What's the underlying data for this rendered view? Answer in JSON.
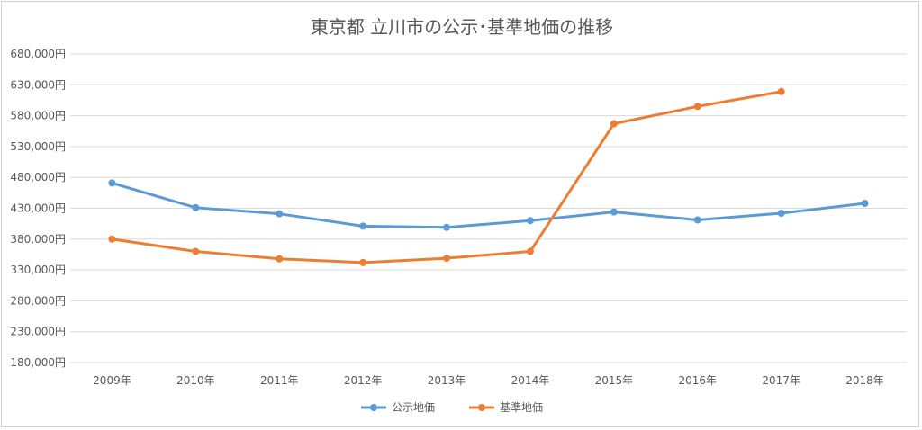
{
  "chart_data": {
    "type": "line",
    "title": "東京都 立川市の公示･基準地価の推移",
    "xlabel": "",
    "ylabel": "",
    "categories": [
      "2009年",
      "2010年",
      "2011年",
      "2012年",
      "2013年",
      "2014年",
      "2015年",
      "2016年",
      "2017年",
      "2018年"
    ],
    "ylim": [
      180000,
      680000
    ],
    "yticks": [
      180000,
      230000,
      280000,
      330000,
      380000,
      430000,
      480000,
      530000,
      580000,
      630000,
      680000
    ],
    "ytick_labels": [
      "180,000円",
      "230,000円",
      "280,000円",
      "330,000円",
      "380,000円",
      "430,000円",
      "480,000円",
      "530,000円",
      "580,000円",
      "630,000円",
      "680,000円"
    ],
    "grid": true,
    "legend_position": "bottom",
    "series": [
      {
        "name": "公示地価",
        "color": "#5b9bd5",
        "values": [
          471000,
          431000,
          421000,
          401000,
          399000,
          410000,
          424000,
          411000,
          422000,
          438000
        ]
      },
      {
        "name": "基準地価",
        "color": "#ed7d31",
        "values": [
          380000,
          360000,
          348000,
          342000,
          349000,
          360000,
          567000,
          595000,
          619000,
          null
        ]
      }
    ]
  }
}
